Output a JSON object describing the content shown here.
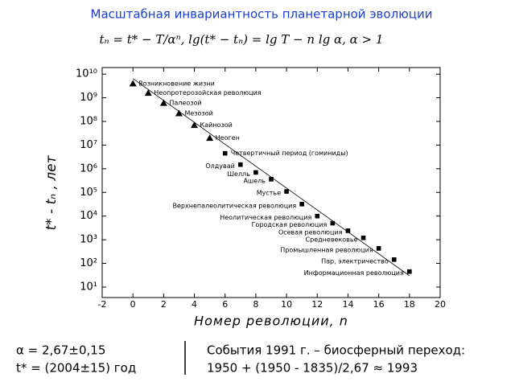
{
  "chart_data": {
    "type": "scatter",
    "title": "Масштабная инвариантность планетарной эволюции",
    "formula": "tₙ = t* − T/αⁿ,   lg(t* − tₙ) = lg T − n lg α,   α > 1",
    "x_label": "Номер революции, n",
    "y_label": "t* - tₙ , лет",
    "log_y": true,
    "xlim": [
      -2,
      20
    ],
    "xticks": [
      -2,
      0,
      2,
      4,
      6,
      8,
      10,
      12,
      14,
      16,
      18,
      20
    ],
    "ylim": [
      3.6,
      19000000000
    ],
    "yticks": [
      {
        "value": 10,
        "label": "10¹"
      },
      {
        "value": 100,
        "label": "10²"
      },
      {
        "value": 1000,
        "label": "10³"
      },
      {
        "value": 10000,
        "label": "10⁴"
      },
      {
        "value": 100000,
        "label": "10⁵"
      },
      {
        "value": 1000000,
        "label": "10⁶"
      },
      {
        "value": 10000000,
        "label": "10⁷"
      },
      {
        "value": 100000000,
        "label": "10⁸"
      },
      {
        "value": 1000000000,
        "label": "10⁹"
      },
      {
        "value": 10000000000,
        "label": "10¹⁰"
      }
    ],
    "series": [
      {
        "marker": "triangle",
        "color": "#000000",
        "x": [
          0,
          1,
          2,
          3,
          4,
          5
        ],
        "values": [
          4000000000,
          1600000000,
          600000000,
          220000000,
          70000000,
          20000000
        ],
        "labels": [
          "Возникновение жизни",
          "Неопротерозойская революция",
          "Палеозой",
          "Мезозой",
          "Кайнозой",
          "Неоген"
        ]
      },
      {
        "marker": "square",
        "color": "#000000",
        "x": [
          6,
          7,
          8,
          9,
          10,
          11,
          12,
          13,
          14,
          15,
          16,
          17,
          18
        ],
        "values": [
          4500000,
          1500000,
          700000,
          360000,
          110000,
          32000,
          10000,
          5000,
          2400,
          1200,
          430,
          145,
          45
        ],
        "labels": [
          "Четвертичный период (гоминиды)",
          "Олдувай",
          "Шелль",
          "Ашель",
          "Мустье",
          "Верхнепалеолитическая революция",
          "Неолитическая революция",
          "Городская революция",
          "Осевая революция",
          "Средневековье",
          "Промышленная революция",
          "Пар, электричество",
          "Информационная революция"
        ]
      }
    ],
    "trend": {
      "x": [
        0,
        18
      ],
      "values": [
        6500000000,
        30
      ]
    },
    "annotations": {
      "left": [
        "α = 2,67±0,15",
        "t* = (2004±15) год"
      ],
      "right": [
        "События 1991 г. – биосферный переход:",
        "1950 + (1950 - 1835)/2,67 ≈ 1993"
      ]
    }
  }
}
